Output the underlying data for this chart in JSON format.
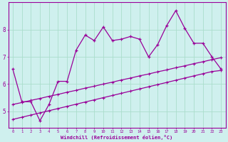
{
  "xlabel": "Windchill (Refroidissement éolien,°C)",
  "bg_color": "#cff0ee",
  "line_color": "#990099",
  "grid_color": "#aaddcc",
  "xlim": [
    -0.5,
    23.5
  ],
  "ylim": [
    4.4,
    9.0
  ],
  "yticks": [
    5,
    6,
    7,
    8
  ],
  "xticks": [
    0,
    1,
    2,
    3,
    4,
    5,
    6,
    7,
    8,
    9,
    10,
    11,
    12,
    13,
    14,
    15,
    16,
    17,
    18,
    19,
    20,
    21,
    22,
    23
  ],
  "line1_x": [
    0,
    1,
    2,
    3,
    4,
    5,
    6,
    7,
    8,
    9,
    10,
    11,
    12,
    13,
    14,
    15,
    16,
    17,
    18,
    19,
    20,
    21,
    22,
    23
  ],
  "line1_y": [
    6.55,
    5.35,
    5.35,
    4.65,
    5.25,
    6.1,
    6.1,
    7.25,
    7.8,
    7.6,
    8.1,
    7.6,
    7.65,
    7.75,
    7.65,
    7.0,
    7.45,
    8.15,
    8.7,
    8.05,
    7.5,
    7.5,
    7.0,
    6.55
  ],
  "line2_x": [
    0,
    1,
    2,
    3,
    4,
    5,
    6,
    7,
    8,
    9,
    10,
    11,
    12,
    13,
    14,
    15,
    16,
    17,
    18,
    19,
    20,
    21,
    22,
    23
  ],
  "line2_y": [
    5.25,
    5.32,
    5.4,
    5.47,
    5.55,
    5.62,
    5.7,
    5.77,
    5.85,
    5.92,
    6.0,
    6.07,
    6.15,
    6.22,
    6.3,
    6.37,
    6.45,
    6.52,
    6.6,
    6.67,
    6.75,
    6.82,
    6.9,
    6.97
  ],
  "line3_x": [
    0,
    1,
    2,
    3,
    4,
    5,
    6,
    7,
    8,
    9,
    10,
    11,
    12,
    13,
    14,
    15,
    16,
    17,
    18,
    19,
    20,
    21,
    22,
    23
  ],
  "line3_y": [
    4.7,
    4.78,
    4.86,
    4.94,
    5.02,
    5.1,
    5.18,
    5.26,
    5.34,
    5.42,
    5.5,
    5.58,
    5.66,
    5.74,
    5.82,
    5.9,
    5.98,
    6.06,
    6.14,
    6.22,
    6.3,
    6.38,
    6.46,
    6.5
  ]
}
